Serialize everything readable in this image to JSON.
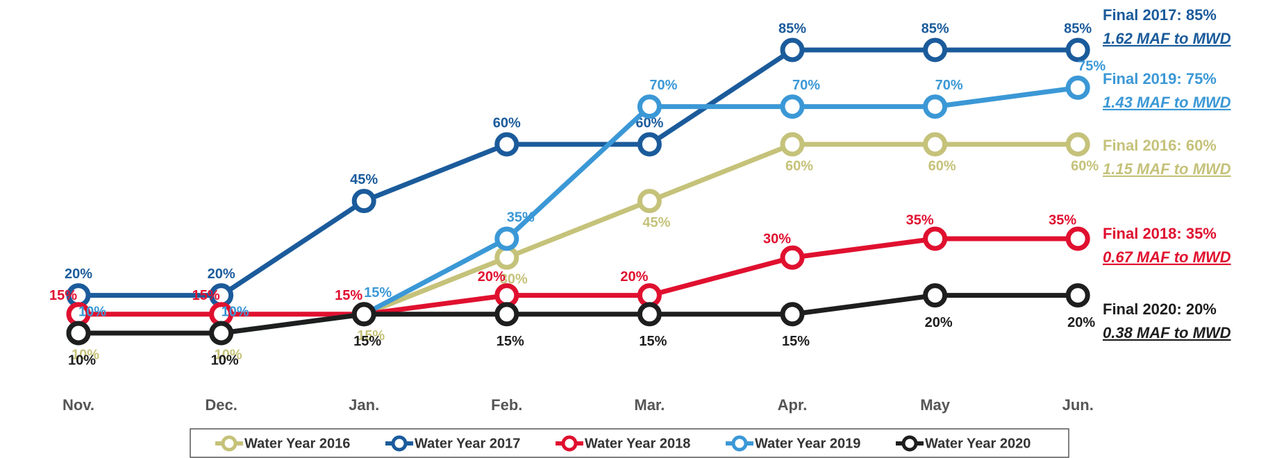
{
  "chart_data": {
    "type": "line",
    "categories": [
      "Nov.",
      "Dec.",
      "Jan.",
      "Feb.",
      "Mar.",
      "Apr.",
      "May",
      "Jun."
    ],
    "series": [
      {
        "name": "Water Year 2016",
        "color": "#c5c27a",
        "values": [
          10,
          10,
          15,
          30,
          45,
          60,
          60,
          60
        ],
        "value_labels": [
          "10%",
          "10%",
          "15%",
          "30%",
          "45%",
          "60%",
          "60%",
          "60%"
        ]
      },
      {
        "name": "Water Year 2017",
        "color": "#1b5b9b",
        "values": [
          20,
          20,
          45,
          60,
          60,
          85,
          85,
          85
        ],
        "value_labels": [
          "20%",
          "20%",
          "45%",
          "60%",
          "60%",
          "85%",
          "85%",
          "85%"
        ]
      },
      {
        "name": "Water Year 2018",
        "color": "#e0102f",
        "values": [
          15,
          15,
          15,
          20,
          20,
          30,
          35,
          35
        ],
        "value_labels": [
          "15%",
          "15%",
          "15%",
          "20%",
          "20%",
          "30%",
          "35%",
          "35%"
        ]
      },
      {
        "name": "Water Year 2019",
        "color": "#3b98d6",
        "values": [
          10,
          10,
          15,
          35,
          70,
          70,
          70,
          75
        ],
        "value_labels": [
          "10%",
          "10%",
          "15%",
          "35%",
          "70%",
          "70%",
          "70%",
          "75%"
        ]
      },
      {
        "name": "Water Year 2020",
        "color": "#1e1e1e",
        "values": [
          10,
          10,
          15,
          15,
          15,
          15,
          20,
          20
        ],
        "value_labels": [
          "10%",
          "10%",
          "15%",
          "15%",
          "15%",
          "15%",
          "20%",
          "20%"
        ]
      }
    ],
    "annotations": [
      {
        "text": "Final 2017: 85%",
        "subtext": "1.62 MAF to MWD",
        "color": "#1b5b9b"
      },
      {
        "text": "Final 2019: 75%",
        "subtext": "1.43 MAF to MWD",
        "color": "#3b98d6"
      },
      {
        "text": "Final 2016: 60%",
        "subtext": "1.15 MAF to MWD",
        "color": "#c5c27a"
      },
      {
        "text": "Final 2018: 35%",
        "subtext": "0.67 MAF to MWD",
        "color": "#e0102f"
      },
      {
        "text": "Final 2020: 20%",
        "subtext": "0.38 MAF to MWD",
        "color": "#1e1e1e"
      }
    ]
  }
}
